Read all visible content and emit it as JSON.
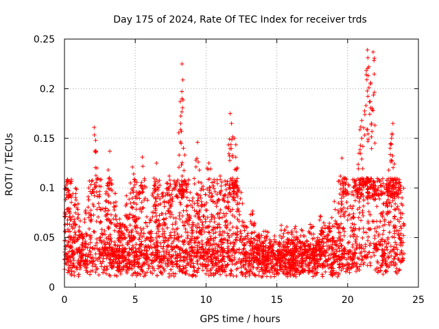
{
  "chart_data": {
    "type": "scatter",
    "title": "Day 175 of 2024, Rate Of TEC Index for receiver trds",
    "xlabel": "GPS time / hours",
    "ylabel": "ROTI / TECUs",
    "xlim": [
      0,
      25
    ],
    "ylim": [
      0,
      0.25
    ],
    "xticks": [
      0,
      5,
      10,
      15,
      20,
      25
    ],
    "xtick_labels": [
      "0",
      "5",
      "10",
      "15",
      "20",
      "25"
    ],
    "yticks": [
      0,
      0.05,
      0.1,
      0.15,
      0.2,
      0.25
    ],
    "ytick_labels": [
      "0",
      "0.05",
      "0.1",
      "0.15",
      "0.2",
      "0.25"
    ],
    "grid": true,
    "marker": "+",
    "color": "#ff0000",
    "data_x_range": [
      0,
      24
    ],
    "series": [
      {
        "name": "ROTI",
        "description_points": "dense band of ROTI samples, mostly 0.01–0.05 TECU/s across 0–24 h",
        "baseline_band": [
          0.01,
          0.05
        ],
        "peaks": [
          {
            "x": 0.1,
            "y": 0.102
          },
          {
            "x": 2.1,
            "y": 0.161
          },
          {
            "x": 2.2,
            "y": 0.148
          },
          {
            "x": 3.2,
            "y": 0.137
          },
          {
            "x": 4.8,
            "y": 0.121
          },
          {
            "x": 5.5,
            "y": 0.131
          },
          {
            "x": 6.5,
            "y": 0.125
          },
          {
            "x": 7.4,
            "y": 0.112
          },
          {
            "x": 8.3,
            "y": 0.225
          },
          {
            "x": 8.3,
            "y": 0.19
          },
          {
            "x": 8.2,
            "y": 0.165
          },
          {
            "x": 8.4,
            "y": 0.14
          },
          {
            "x": 9.4,
            "y": 0.146
          },
          {
            "x": 10.2,
            "y": 0.125
          },
          {
            "x": 11.0,
            "y": 0.112
          },
          {
            "x": 11.7,
            "y": 0.175
          },
          {
            "x": 11.8,
            "y": 0.165
          },
          {
            "x": 12.0,
            "y": 0.15
          },
          {
            "x": 12.1,
            "y": 0.131
          },
          {
            "x": 19.6,
            "y": 0.13
          },
          {
            "x": 20.8,
            "y": 0.135
          },
          {
            "x": 21.0,
            "y": 0.15
          },
          {
            "x": 21.4,
            "y": 0.239
          },
          {
            "x": 21.8,
            "y": 0.237
          },
          {
            "x": 21.5,
            "y": 0.222
          },
          {
            "x": 21.5,
            "y": 0.201
          },
          {
            "x": 21.6,
            "y": 0.187
          },
          {
            "x": 21.3,
            "y": 0.183
          },
          {
            "x": 21.8,
            "y": 0.178
          },
          {
            "x": 21.0,
            "y": 0.168
          },
          {
            "x": 23.2,
            "y": 0.165
          },
          {
            "x": 23.1,
            "y": 0.15
          },
          {
            "x": 23.0,
            "y": 0.14
          },
          {
            "x": 22.9,
            "y": 0.118
          },
          {
            "x": 23.4,
            "y": 0.108
          }
        ]
      }
    ]
  }
}
